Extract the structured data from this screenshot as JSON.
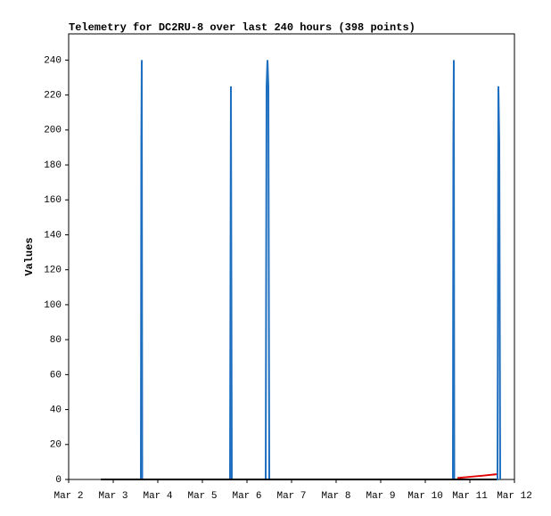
{
  "chart_data": {
    "type": "line",
    "title": "Telemetry for DC2RU-8 over last 240 hours (398 points)",
    "y_label": "Values",
    "xlim": [
      2,
      12
    ],
    "xticks": [
      {
        "value": 2,
        "label": "Mar 2"
      },
      {
        "value": 3,
        "label": "Mar 3"
      },
      {
        "value": 4,
        "label": "Mar 4"
      },
      {
        "value": 5,
        "label": "Mar 5"
      },
      {
        "value": 6,
        "label": "Mar 6"
      },
      {
        "value": 7,
        "label": "Mar 7"
      },
      {
        "value": 8,
        "label": "Mar 8"
      },
      {
        "value": 9,
        "label": "Mar 9"
      },
      {
        "value": 10,
        "label": "Mar 10"
      },
      {
        "value": 11,
        "label": "Mar 11"
      },
      {
        "value": 12,
        "label": "Mar 12"
      }
    ],
    "ylim": [
      0,
      255
    ],
    "yticks": [
      0,
      20,
      40,
      60,
      80,
      100,
      120,
      140,
      160,
      180,
      200,
      220,
      240
    ],
    "grid": false,
    "series": [
      {
        "color": "#1f6fc0",
        "x": [
          3.62,
          3.63,
          3.64,
          3.65,
          5.62,
          5.64,
          5.66,
          6.42,
          6.44,
          6.46,
          6.48,
          6.5,
          10.62,
          10.63,
          10.64,
          10.65,
          11.62,
          11.64,
          11.66,
          11.68
        ],
        "values": [
          0,
          192,
          240,
          0,
          0,
          225,
          0,
          0,
          225,
          240,
          225,
          0,
          0,
          192,
          240,
          0,
          0,
          225,
          192,
          0
        ]
      },
      {
        "color": "#000000",
        "x": [
          2.72,
          11.6
        ],
        "values": [
          0,
          0
        ]
      },
      {
        "color": "#e00000",
        "x": [
          10.72,
          11.0,
          11.3,
          11.6
        ],
        "values": [
          0.8,
          1.5,
          2.2,
          3
        ]
      }
    ]
  }
}
